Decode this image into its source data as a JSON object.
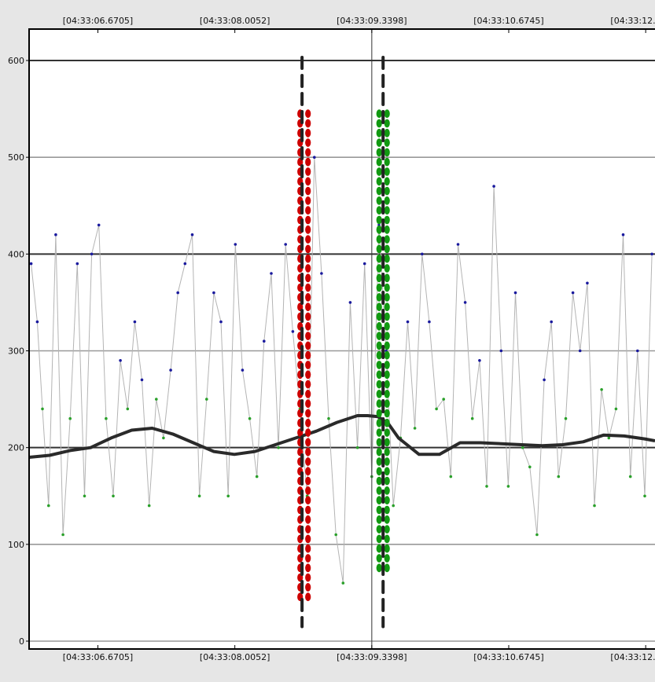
{
  "chart_data": {
    "type": "line",
    "title": "",
    "xlabel": "",
    "ylabel": "",
    "ylim": [
      0,
      600
    ],
    "y_ticks": [
      0,
      100,
      200,
      300,
      400,
      500,
      600
    ],
    "y_tick_labels": [
      "0",
      "100",
      "200",
      "300",
      "400",
      "500",
      "600"
    ],
    "x_tick_labels": [
      "[04:33:06.6705]",
      "[04:33:08.0052]",
      "[04:33:09.3398]",
      "[04:33:10.6745]",
      "[04:33:12.0092]"
    ],
    "x_ticks_s": [
      6.6705,
      8.0052,
      9.3398,
      10.6745,
      12.0092
    ],
    "x_range_s": [
      6.0,
      12.1
    ],
    "grid": true,
    "legend": "none",
    "cursor_x_s": 9.34,
    "colors": {
      "background": "#e6e6e6",
      "plot_background": "#ffffff",
      "raw_series": "#b4b4b4",
      "dots_high": "#1a1a9e",
      "dots_low": "#2aa02a",
      "smoothed": "#2a2a2a",
      "red_marker": "#cc0000",
      "green_marker": "#119911"
    },
    "markers": [
      {
        "x_s": 8.68,
        "y_range": [
          40,
          545
        ],
        "color": "#cc0000"
      },
      {
        "x_s": 9.45,
        "y_range": [
          75,
          545
        ],
        "color": "#119911"
      }
    ],
    "dashed_lines": [
      {
        "x_s": 8.66,
        "y_range": [
          15,
          600
        ]
      },
      {
        "x_s": 9.45,
        "y_range": [
          15,
          600
        ]
      }
    ],
    "series": [
      {
        "kind": "raw",
        "x": [
          6.02,
          6.08,
          6.13,
          6.19,
          6.26,
          6.33,
          6.4,
          6.47,
          6.54,
          6.61,
          6.68,
          6.75,
          6.82,
          6.89,
          6.96,
          7.03,
          7.1,
          7.17,
          7.24,
          7.31,
          7.38,
          7.45,
          7.52,
          7.59,
          7.66,
          7.73,
          7.8,
          7.87,
          7.94,
          8.01,
          8.08,
          8.15,
          8.22,
          8.29,
          8.36,
          8.43,
          8.5,
          8.57,
          8.64,
          8.71,
          8.78,
          8.85,
          8.92,
          8.99,
          9.06,
          9.13,
          9.2,
          9.27,
          9.34,
          9.41,
          9.48,
          9.55,
          9.62,
          9.69,
          9.76,
          9.83,
          9.9,
          9.97,
          10.04,
          10.11,
          10.18,
          10.25,
          10.32,
          10.39,
          10.46,
          10.53,
          10.6,
          10.67,
          10.74,
          10.81,
          10.88,
          10.95,
          11.02,
          11.09,
          11.16,
          11.23,
          11.3,
          11.37,
          11.44,
          11.51,
          11.58,
          11.65,
          11.72,
          11.79,
          11.86,
          11.93,
          12.0,
          12.07
        ],
        "values": [
          390,
          330,
          240,
          140,
          420,
          110,
          230,
          390,
          150,
          400,
          430,
          230,
          150,
          290,
          240,
          330,
          270,
          140,
          250,
          210,
          280,
          360,
          390,
          420,
          150,
          250,
          360,
          330,
          150,
          410,
          280,
          230,
          170,
          310,
          380,
          200,
          410,
          320,
          240,
          150,
          500,
          380,
          230,
          110,
          60,
          350,
          200,
          390,
          170,
          430,
          300,
          140,
          210,
          330,
          220,
          400,
          330,
          240,
          250,
          170,
          410,
          350,
          230,
          290,
          160,
          470,
          300,
          160,
          360,
          200,
          180,
          110,
          270,
          330,
          170,
          230,
          360,
          300,
          370,
          140,
          260,
          210,
          240,
          420,
          170,
          300,
          150,
          400
        ],
        "style": "thin-gray-line"
      },
      {
        "kind": "smoothed",
        "x": [
          6.0,
          6.2,
          6.4,
          6.6,
          6.8,
          7.0,
          7.2,
          7.4,
          7.6,
          7.8,
          8.0,
          8.2,
          8.4,
          8.6,
          8.8,
          9.0,
          9.2,
          9.3,
          9.4,
          9.5,
          9.6,
          9.8,
          10.0,
          10.2,
          10.4,
          10.6,
          10.8,
          11.0,
          11.2,
          11.4,
          11.6,
          11.8,
          12.0,
          12.1
        ],
        "values": [
          190,
          192,
          197,
          200,
          210,
          218,
          220,
          214,
          205,
          196,
          193,
          196,
          203,
          210,
          217,
          226,
          233,
          233,
          232,
          225,
          210,
          193,
          193,
          205,
          205,
          204,
          203,
          202,
          203,
          206,
          213,
          212,
          209,
          207
        ],
        "style": "thick-dark-line"
      }
    ]
  }
}
